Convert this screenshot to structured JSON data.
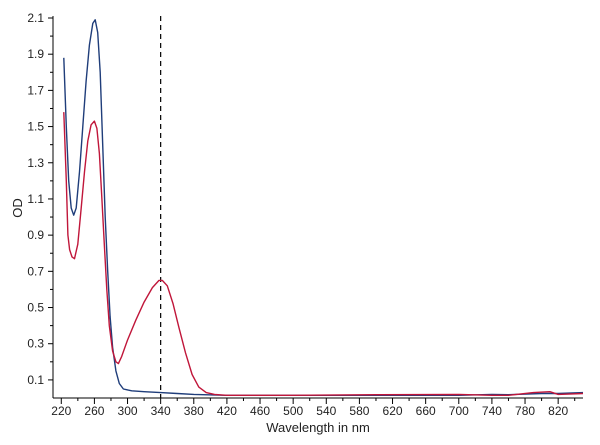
{
  "chart_data": {
    "type": "line",
    "title": "",
    "xlabel": "Wavelength in nm",
    "ylabel": "OD",
    "xlim": [
      210,
      850
    ],
    "ylim": [
      0,
      2.1
    ],
    "grid": false,
    "x_ticks": [
      220,
      260,
      300,
      340,
      380,
      420,
      460,
      500,
      540,
      580,
      620,
      660,
      700,
      740,
      780,
      820
    ],
    "y_ticks": [
      0.1,
      0.3,
      0.5,
      0.7,
      0.9,
      1.1,
      1.3,
      1.5,
      1.7,
      1.9,
      2.1
    ],
    "x_tick_labels": [
      "220",
      "260",
      "300",
      "340",
      "380",
      "420",
      "460",
      "500",
      "540",
      "580",
      "620",
      "660",
      "700",
      "740",
      "780",
      "820"
    ],
    "y_tick_labels": [
      "0.1",
      "0.3",
      "0.5",
      "0.7",
      "0.9",
      "1.1",
      "1.3",
      "1.5",
      "1.7",
      "1.9",
      "2.1"
    ],
    "reference_line": {
      "x": 340,
      "style": "dashed",
      "color": "#000000"
    },
    "series": [
      {
        "color": "#1f3d7a",
        "points": [
          [
            223,
            1.88
          ],
          [
            226,
            1.5
          ],
          [
            229,
            1.2
          ],
          [
            232,
            1.05
          ],
          [
            235,
            1.01
          ],
          [
            238,
            1.05
          ],
          [
            242,
            1.25
          ],
          [
            246,
            1.5
          ],
          [
            250,
            1.75
          ],
          [
            254,
            1.95
          ],
          [
            258,
            2.07
          ],
          [
            261,
            2.09
          ],
          [
            264,
            2.02
          ],
          [
            267,
            1.8
          ],
          [
            270,
            1.4
          ],
          [
            273,
            1.0
          ],
          [
            276,
            0.7
          ],
          [
            279,
            0.45
          ],
          [
            282,
            0.28
          ],
          [
            286,
            0.15
          ],
          [
            290,
            0.08
          ],
          [
            295,
            0.05
          ],
          [
            305,
            0.04
          ],
          [
            320,
            0.035
          ],
          [
            340,
            0.03
          ],
          [
            360,
            0.025
          ],
          [
            380,
            0.02
          ],
          [
            420,
            0.015
          ],
          [
            500,
            0.015
          ],
          [
            600,
            0.015
          ],
          [
            700,
            0.015
          ],
          [
            740,
            0.02
          ],
          [
            760,
            0.018
          ],
          [
            800,
            0.025
          ],
          [
            820,
            0.025
          ],
          [
            850,
            0.03
          ]
        ]
      },
      {
        "color": "#c0163a",
        "points": [
          [
            223,
            1.58
          ],
          [
            226,
            1.2
          ],
          [
            228,
            0.9
          ],
          [
            230,
            0.82
          ],
          [
            233,
            0.78
          ],
          [
            236,
            0.77
          ],
          [
            240,
            0.85
          ],
          [
            244,
            1.05
          ],
          [
            248,
            1.25
          ],
          [
            252,
            1.42
          ],
          [
            256,
            1.51
          ],
          [
            260,
            1.53
          ],
          [
            263,
            1.49
          ],
          [
            266,
            1.35
          ],
          [
            269,
            1.1
          ],
          [
            272,
            0.85
          ],
          [
            275,
            0.6
          ],
          [
            278,
            0.4
          ],
          [
            282,
            0.26
          ],
          [
            286,
            0.2
          ],
          [
            289,
            0.19
          ],
          [
            293,
            0.23
          ],
          [
            300,
            0.32
          ],
          [
            310,
            0.43
          ],
          [
            320,
            0.53
          ],
          [
            330,
            0.61
          ],
          [
            338,
            0.65
          ],
          [
            342,
            0.65
          ],
          [
            348,
            0.62
          ],
          [
            355,
            0.52
          ],
          [
            362,
            0.39
          ],
          [
            370,
            0.25
          ],
          [
            378,
            0.13
          ],
          [
            386,
            0.06
          ],
          [
            395,
            0.03
          ],
          [
            405,
            0.02
          ],
          [
            420,
            0.015
          ],
          [
            500,
            0.015
          ],
          [
            600,
            0.018
          ],
          [
            700,
            0.02
          ],
          [
            740,
            0.015
          ],
          [
            760,
            0.015
          ],
          [
            790,
            0.03
          ],
          [
            810,
            0.035
          ],
          [
            820,
            0.02
          ],
          [
            850,
            0.025
          ]
        ]
      }
    ]
  }
}
